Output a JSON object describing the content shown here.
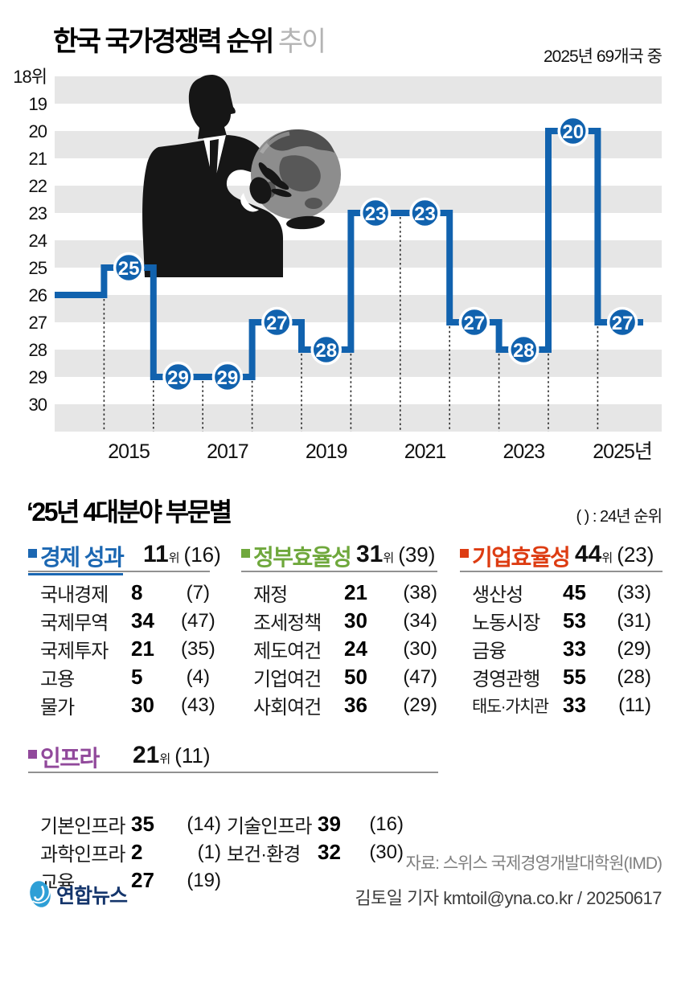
{
  "header": {
    "title_main": "한국 국가경쟁력 순위",
    "title_sub": "추이",
    "note": "2025년 69개국 중"
  },
  "chart_data": {
    "type": "line",
    "subtype": "step",
    "title": "한국 국가경쟁력 순위 추이",
    "x": [
      2014,
      2015,
      2016,
      2017,
      2018,
      2019,
      2020,
      2021,
      2022,
      2023,
      2024,
      2025
    ],
    "values": [
      26,
      25,
      29,
      29,
      27,
      28,
      23,
      23,
      27,
      28,
      20,
      27
    ],
    "first_labeled_year": 2015,
    "y_ticks": [
      "18위",
      "19",
      "20",
      "21",
      "22",
      "23",
      "24",
      "25",
      "26",
      "27",
      "28",
      "29",
      "30"
    ],
    "x_tick_years": [
      2015,
      2017,
      2019,
      2021,
      2023,
      2025
    ],
    "x_tick_labels": [
      "2015",
      "2017",
      "2019",
      "2021",
      "2023",
      "2025년"
    ],
    "ylim": [
      18,
      30
    ],
    "y_axis_inverted": true,
    "grid": "horizontal-stripes",
    "legend_position": "none",
    "line_color": "#1162ae",
    "stripe_color": "#e6e6e6"
  },
  "section": {
    "title": "‘25년 4대분야 부문별",
    "legend_note": "( ) : 24년 순위"
  },
  "groups": [
    {
      "name": "경제 성과",
      "color": "#1b67b2",
      "rank": "11",
      "rank_unit": "위",
      "prev": "(16)",
      "items": [
        {
          "label": "국내경제",
          "value": "8",
          "prev": "(7)"
        },
        {
          "label": "국제무역",
          "value": "34",
          "prev": "(47)"
        },
        {
          "label": "국제투자",
          "value": "21",
          "prev": "(35)"
        },
        {
          "label": "고용",
          "value": "5",
          "prev": "(4)"
        },
        {
          "label": "물가",
          "value": "30",
          "prev": "(43)"
        }
      ]
    },
    {
      "name": "정부효율성",
      "color": "#6fa83c",
      "rank": "31",
      "rank_unit": "위",
      "prev": "(39)",
      "items": [
        {
          "label": "재정",
          "value": "21",
          "prev": "(38)"
        },
        {
          "label": "조세정책",
          "value": "30",
          "prev": "(34)"
        },
        {
          "label": "제도여건",
          "value": "24",
          "prev": "(30)"
        },
        {
          "label": "기업여건",
          "value": "50",
          "prev": "(47)"
        },
        {
          "label": "사회여건",
          "value": "36",
          "prev": "(29)"
        }
      ]
    },
    {
      "name": "기업효율성",
      "color": "#dd3c12",
      "rank": "44",
      "rank_unit": "위",
      "prev": "(23)",
      "items": [
        {
          "label": "생산성",
          "value": "45",
          "prev": "(33)"
        },
        {
          "label": "노동시장",
          "value": "53",
          "prev": "(31)"
        },
        {
          "label": "금융",
          "value": "33",
          "prev": "(29)"
        },
        {
          "label": "경영관행",
          "value": "55",
          "prev": "(28)"
        },
        {
          "label": "태도·가치관",
          "value": "33",
          "prev": "(11)"
        }
      ]
    },
    {
      "name": "인프라",
      "color": "#91499b",
      "rank": "21",
      "rank_unit": "위",
      "prev": "(11)",
      "items_left": [
        {
          "label": "기본인프라",
          "value": "35",
          "prev": "(14)"
        },
        {
          "label": "과학인프라",
          "value": "2",
          "prev": "(1)"
        },
        {
          "label": "교육",
          "value": "27",
          "prev": "(19)"
        }
      ],
      "items_right": [
        {
          "label": "기술인프라",
          "value": "39",
          "prev": "(16)"
        },
        {
          "label": "보건·환경",
          "value": "32",
          "prev": "(30)"
        }
      ]
    }
  ],
  "footer": {
    "source": "자료: 스위스 국제경영개발대학원(IMD)",
    "credit": "김토일 기자 kmtoil@yna.co.kr / 20250617",
    "logo_text": "연합뉴스"
  }
}
